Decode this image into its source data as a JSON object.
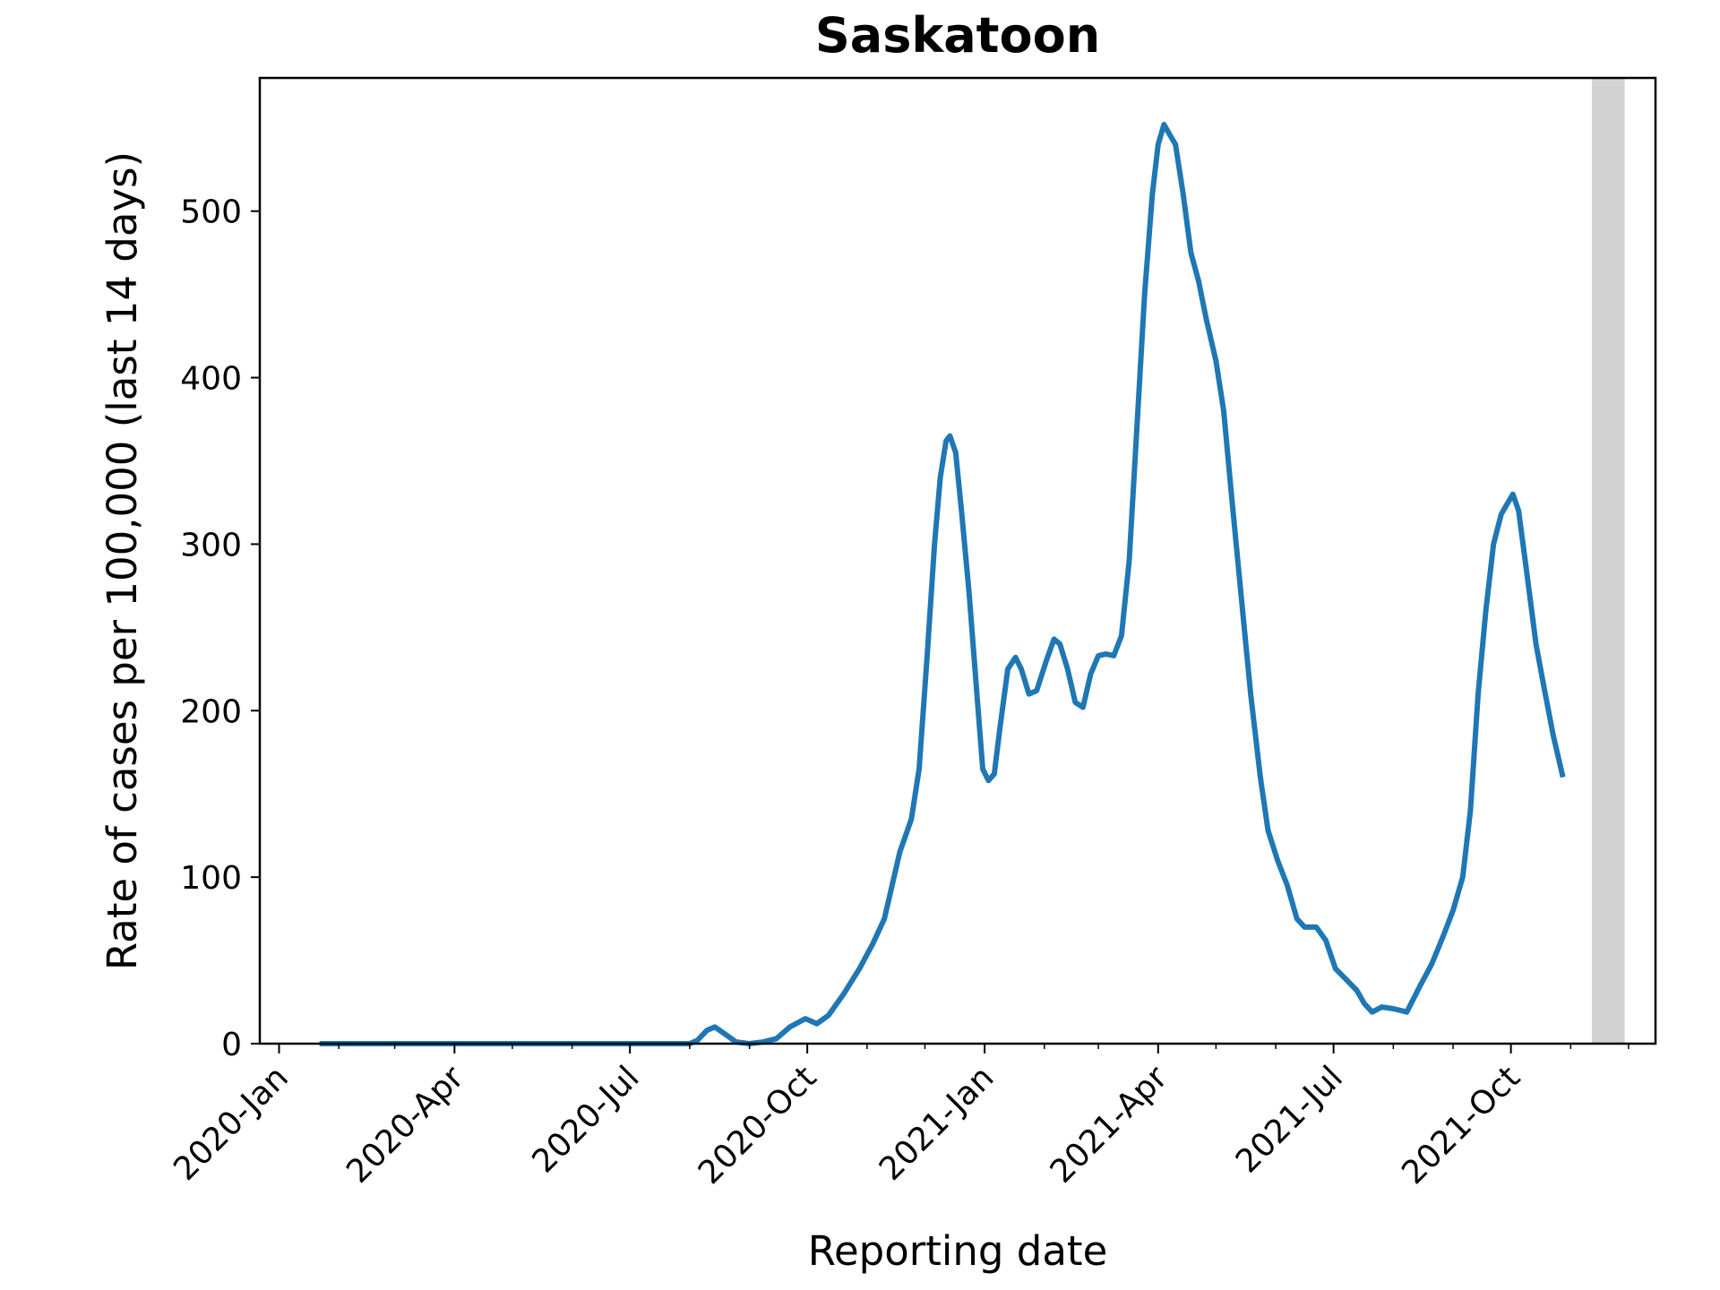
{
  "chart_data": {
    "type": "line",
    "title": "Saskatoon",
    "xlabel": "Reporting date",
    "ylabel": "Rate of cases per 100,000 (last 14 days)",
    "xlim": [
      "2019-12-22",
      "2021-12-15"
    ],
    "ylim": [
      0,
      580
    ],
    "yticks": [
      0,
      100,
      200,
      300,
      400,
      500
    ],
    "xticks": [
      {
        "date": "2020-01-01",
        "label": "2020-Jan"
      },
      {
        "date": "2020-04-01",
        "label": "2020-Apr"
      },
      {
        "date": "2020-07-01",
        "label": "2020-Jul"
      },
      {
        "date": "2020-10-01",
        "label": "2020-Oct"
      },
      {
        "date": "2021-01-01",
        "label": "2021-Jan"
      },
      {
        "date": "2021-04-01",
        "label": "2021-Apr"
      },
      {
        "date": "2021-07-01",
        "label": "2021-Jul"
      },
      {
        "date": "2021-10-01",
        "label": "2021-Oct"
      }
    ],
    "minor_xticks": [
      "2020-02-01",
      "2020-03-01",
      "2020-05-01",
      "2020-06-01",
      "2020-08-01",
      "2020-09-01",
      "2020-11-01",
      "2020-12-01",
      "2021-02-01",
      "2021-03-01",
      "2021-05-01",
      "2021-06-01",
      "2021-08-01",
      "2021-09-01",
      "2021-11-01",
      "2021-12-01"
    ],
    "shaded_region": {
      "start": "2021-11-12",
      "end": "2021-11-29",
      "color": "#d3d3d3"
    },
    "grid": false,
    "series": [
      {
        "color": "#1f77b4",
        "points": [
          [
            "2020-01-22",
            0
          ],
          [
            "2020-03-01",
            0
          ],
          [
            "2020-05-01",
            0
          ],
          [
            "2020-07-01",
            0
          ],
          [
            "2020-08-01",
            0
          ],
          [
            "2020-08-05",
            2
          ],
          [
            "2020-08-10",
            8
          ],
          [
            "2020-08-14",
            10
          ],
          [
            "2020-08-19",
            6
          ],
          [
            "2020-08-25",
            1
          ],
          [
            "2020-09-01",
            0
          ],
          [
            "2020-09-08",
            1
          ],
          [
            "2020-09-15",
            3
          ],
          [
            "2020-09-22",
            10
          ],
          [
            "2020-09-30",
            15
          ],
          [
            "2020-10-06",
            12
          ],
          [
            "2020-10-12",
            17
          ],
          [
            "2020-10-20",
            30
          ],
          [
            "2020-10-28",
            45
          ],
          [
            "2020-11-04",
            60
          ],
          [
            "2020-11-10",
            75
          ],
          [
            "2020-11-14",
            95
          ],
          [
            "2020-11-18",
            115
          ],
          [
            "2020-11-24",
            135
          ],
          [
            "2020-11-28",
            165
          ],
          [
            "2020-12-02",
            230
          ],
          [
            "2020-12-06",
            300
          ],
          [
            "2020-12-09",
            340
          ],
          [
            "2020-12-12",
            362
          ],
          [
            "2020-12-14",
            365
          ],
          [
            "2020-12-17",
            355
          ],
          [
            "2020-12-20",
            320
          ],
          [
            "2020-12-24",
            270
          ],
          [
            "2020-12-28",
            210
          ],
          [
            "2020-12-31",
            165
          ],
          [
            "2021-01-03",
            158
          ],
          [
            "2021-01-06",
            162
          ],
          [
            "2021-01-09",
            190
          ],
          [
            "2021-01-13",
            225
          ],
          [
            "2021-01-17",
            232
          ],
          [
            "2021-01-20",
            225
          ],
          [
            "2021-01-24",
            210
          ],
          [
            "2021-01-28",
            212
          ],
          [
            "2021-02-02",
            230
          ],
          [
            "2021-02-06",
            243
          ],
          [
            "2021-02-09",
            240
          ],
          [
            "2021-02-13",
            225
          ],
          [
            "2021-02-17",
            205
          ],
          [
            "2021-02-21",
            202
          ],
          [
            "2021-02-25",
            222
          ],
          [
            "2021-03-01",
            233
          ],
          [
            "2021-03-05",
            234
          ],
          [
            "2021-03-09",
            233
          ],
          [
            "2021-03-13",
            245
          ],
          [
            "2021-03-17",
            290
          ],
          [
            "2021-03-21",
            370
          ],
          [
            "2021-03-25",
            450
          ],
          [
            "2021-03-29",
            510
          ],
          [
            "2021-04-01",
            540
          ],
          [
            "2021-04-04",
            552
          ],
          [
            "2021-04-07",
            546
          ],
          [
            "2021-04-10",
            540
          ],
          [
            "2021-04-14",
            510
          ],
          [
            "2021-04-18",
            475
          ],
          [
            "2021-04-22",
            458
          ],
          [
            "2021-04-26",
            435
          ],
          [
            "2021-05-01",
            410
          ],
          [
            "2021-05-05",
            380
          ],
          [
            "2021-05-09",
            330
          ],
          [
            "2021-05-14",
            270
          ],
          [
            "2021-05-19",
            210
          ],
          [
            "2021-05-24",
            160
          ],
          [
            "2021-05-28",
            128
          ],
          [
            "2021-06-02",
            110
          ],
          [
            "2021-06-07",
            95
          ],
          [
            "2021-06-12",
            75
          ],
          [
            "2021-06-16",
            70
          ],
          [
            "2021-06-22",
            70
          ],
          [
            "2021-06-27",
            62
          ],
          [
            "2021-07-02",
            45
          ],
          [
            "2021-07-08",
            38
          ],
          [
            "2021-07-13",
            32
          ],
          [
            "2021-07-17",
            24
          ],
          [
            "2021-07-21",
            19
          ],
          [
            "2021-07-26",
            22
          ],
          [
            "2021-08-01",
            21
          ],
          [
            "2021-08-08",
            19
          ],
          [
            "2021-08-15",
            35
          ],
          [
            "2021-08-21",
            48
          ],
          [
            "2021-08-27",
            65
          ],
          [
            "2021-09-01",
            80
          ],
          [
            "2021-09-06",
            100
          ],
          [
            "2021-09-10",
            140
          ],
          [
            "2021-09-14",
            210
          ],
          [
            "2021-09-18",
            260
          ],
          [
            "2021-09-22",
            300
          ],
          [
            "2021-09-26",
            318
          ],
          [
            "2021-09-29",
            324
          ],
          [
            "2021-10-02",
            330
          ],
          [
            "2021-10-05",
            320
          ],
          [
            "2021-10-09",
            285
          ],
          [
            "2021-10-14",
            240
          ],
          [
            "2021-10-18",
            215
          ],
          [
            "2021-10-23",
            185
          ],
          [
            "2021-10-28",
            160
          ]
        ]
      }
    ]
  }
}
